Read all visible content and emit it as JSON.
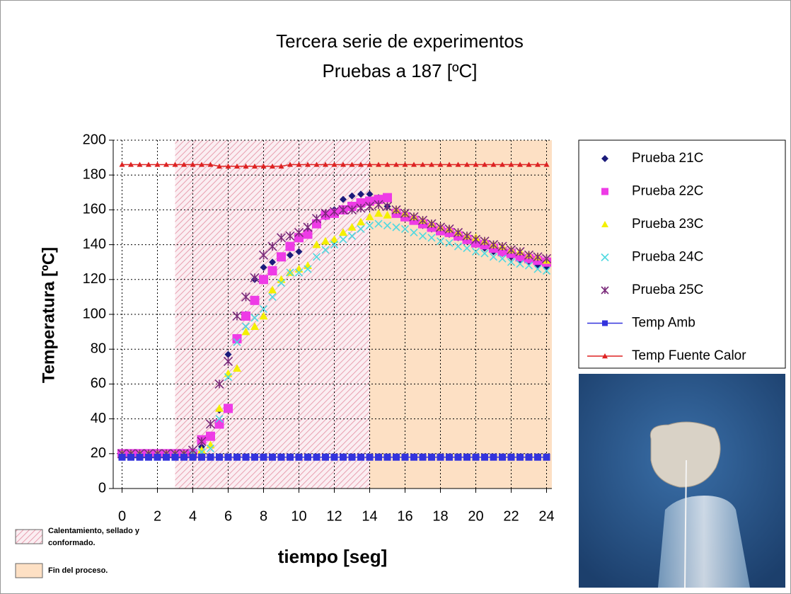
{
  "chart_data": {
    "type": "scatter",
    "title": "Tercera serie de experimentos",
    "subtitle": "Pruebas a 187 [ºC]",
    "x_label": "tiempo [seg]",
    "y_label": "Temperatura [ºC]",
    "xlim": [
      -0.5,
      24.3
    ],
    "ylim": [
      0,
      200
    ],
    "xticks": [
      0,
      2,
      4,
      6,
      8,
      10,
      12,
      14,
      16,
      18,
      20,
      22,
      24
    ],
    "yticks": [
      0,
      20,
      40,
      60,
      80,
      100,
      120,
      140,
      160,
      180,
      200
    ],
    "grid": true,
    "legend": "right",
    "regions": [
      {
        "label": "Calentamiento, sellado y conformado.",
        "x": [
          3,
          14
        ],
        "color": "#e8a0b0",
        "pattern": "hatch"
      },
      {
        "label": "Fin del proceso.",
        "x": [
          14,
          24.3
        ],
        "color": "#fde0c4",
        "pattern": "solid"
      }
    ],
    "x": [
      0,
      0.5,
      1,
      1.5,
      2,
      2.5,
      3,
      3.5,
      4,
      4.5,
      5,
      5.5,
      6,
      6.5,
      7,
      7.5,
      8,
      8.5,
      9,
      9.5,
      10,
      10.5,
      11,
      11.5,
      12,
      12.5,
      13,
      13.5,
      14,
      14.5,
      15,
      15.5,
      16,
      16.5,
      17,
      17.5,
      18,
      18.5,
      19,
      19.5,
      20,
      20.5,
      21,
      21.5,
      22,
      22.5,
      23,
      23.5,
      24
    ],
    "series": [
      {
        "name": "Prueba 21C",
        "color": "#1a1a7a",
        "marker": "diamond",
        "values": [
          20,
          20,
          20,
          20,
          20,
          20,
          20,
          20,
          21,
          24,
          30,
          45,
          77,
          86,
          100,
          120,
          127,
          130,
          133,
          134,
          136,
          148,
          152,
          156,
          160,
          166,
          168,
          169,
          169,
          167,
          162,
          158,
          156,
          154,
          151,
          149,
          148,
          146,
          144,
          142,
          140,
          138,
          136,
          135,
          133,
          131,
          130,
          128,
          127
        ]
      },
      {
        "name": "Prueba 22C",
        "color": "#ee3be6",
        "marker": "square",
        "values": [
          20,
          20,
          20,
          20,
          20,
          20,
          20,
          20,
          20,
          28,
          30,
          37,
          46,
          86,
          99,
          108,
          120,
          125,
          133,
          139,
          144,
          146,
          152,
          157,
          158,
          160,
          162,
          164,
          165,
          166,
          167,
          158,
          156,
          154,
          152,
          150,
          148,
          147,
          145,
          143,
          141,
          140,
          138,
          136,
          135,
          133,
          132,
          131,
          130
        ]
      },
      {
        "name": "Prueba 23C",
        "color": "#f4f000",
        "marker": "triangle",
        "values": [
          20,
          20,
          20,
          20,
          20,
          20,
          20,
          20,
          20,
          22,
          25,
          46,
          66,
          69,
          90,
          93,
          99,
          114,
          120,
          124,
          126,
          128,
          140,
          142,
          143,
          147,
          150,
          153,
          156,
          158,
          157,
          160,
          158,
          156,
          154,
          152,
          150,
          149,
          147,
          145,
          144,
          142,
          140,
          139,
          137,
          136,
          134,
          133,
          131
        ]
      },
      {
        "name": "Prueba 24C",
        "color": "#4fd8e0",
        "marker": "cross",
        "values": [
          20,
          20,
          20,
          20,
          20,
          20,
          20,
          20,
          20,
          21,
          23,
          40,
          64,
          84,
          93,
          98,
          103,
          110,
          118,
          124,
          124,
          126,
          133,
          137,
          140,
          143,
          145,
          149,
          151,
          152,
          151,
          150,
          149,
          147,
          145,
          144,
          142,
          141,
          139,
          138,
          136,
          135,
          133,
          132,
          130,
          129,
          128,
          126,
          125
        ]
      },
      {
        "name": "Prueba 25C",
        "color": "#7a2a7a",
        "marker": "asterisk",
        "values": [
          20,
          20,
          20,
          20,
          20,
          20,
          20,
          20,
          22,
          27,
          37,
          60,
          73,
          99,
          110,
          121,
          134,
          139,
          144,
          145,
          147,
          150,
          155,
          158,
          159,
          160,
          160,
          161,
          162,
          163,
          162,
          160,
          158,
          156,
          154,
          152,
          150,
          149,
          147,
          145,
          143,
          142,
          140,
          139,
          137,
          136,
          134,
          133,
          132
        ]
      },
      {
        "name": "Temp Amb",
        "color": "#3333dd",
        "marker": "square",
        "line": true,
        "values": [
          18,
          18,
          18,
          18,
          18,
          18,
          18,
          18,
          18,
          18,
          18,
          18,
          18,
          18,
          18,
          18,
          18,
          18,
          18,
          18,
          18,
          18,
          18,
          18,
          18,
          18,
          18,
          18,
          18,
          18,
          18,
          18,
          18,
          18,
          18,
          18,
          18,
          18,
          18,
          18,
          18,
          18,
          18,
          18,
          18,
          18,
          18,
          18,
          18
        ]
      },
      {
        "name": "Temp Fuente Calor",
        "color": "#dd2222",
        "marker": "triangle",
        "line": true,
        "values": [
          186,
          186,
          186,
          186,
          186,
          186,
          186,
          186,
          186,
          186,
          186,
          185,
          185,
          185,
          185,
          185,
          185,
          185,
          185,
          186,
          186,
          186,
          186,
          186,
          186,
          186,
          186,
          186,
          186,
          186,
          186,
          186,
          186,
          186,
          186,
          186,
          186,
          186,
          186,
          186,
          186,
          186,
          186,
          186,
          186,
          186,
          186,
          186,
          186
        ]
      }
    ]
  }
}
